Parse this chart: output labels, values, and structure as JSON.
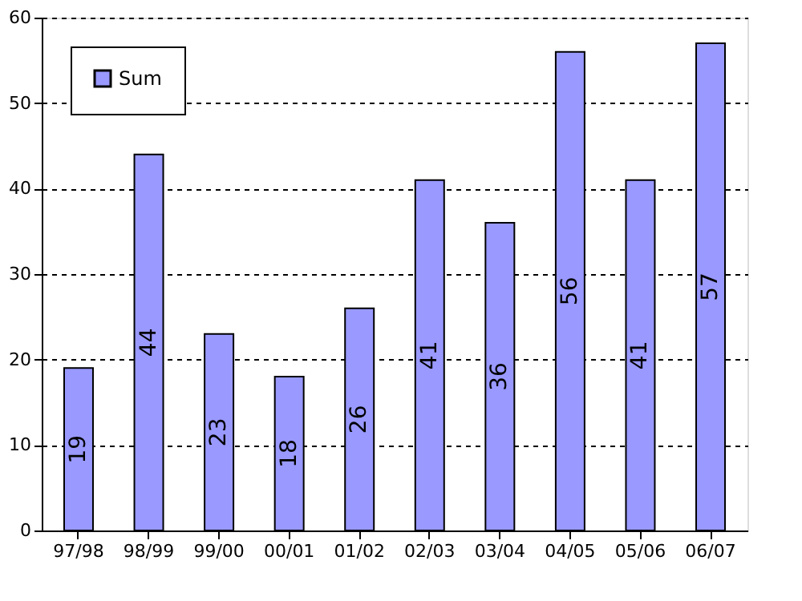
{
  "chart_data": {
    "type": "bar",
    "categories": [
      "97/98",
      "98/99",
      "99/00",
      "00/01",
      "01/02",
      "02/03",
      "03/04",
      "04/05",
      "05/06",
      "06/07"
    ],
    "series": [
      {
        "name": "Sum",
        "color": "#9999ff",
        "values": [
          19,
          44,
          23,
          18,
          26,
          41,
          36,
          56,
          41,
          57
        ]
      }
    ],
    "ylim": [
      0,
      60
    ],
    "yticks": [
      0,
      10,
      20,
      30,
      40,
      50,
      60
    ],
    "grid": "y",
    "legend": "top left",
    "data_labels": true
  }
}
